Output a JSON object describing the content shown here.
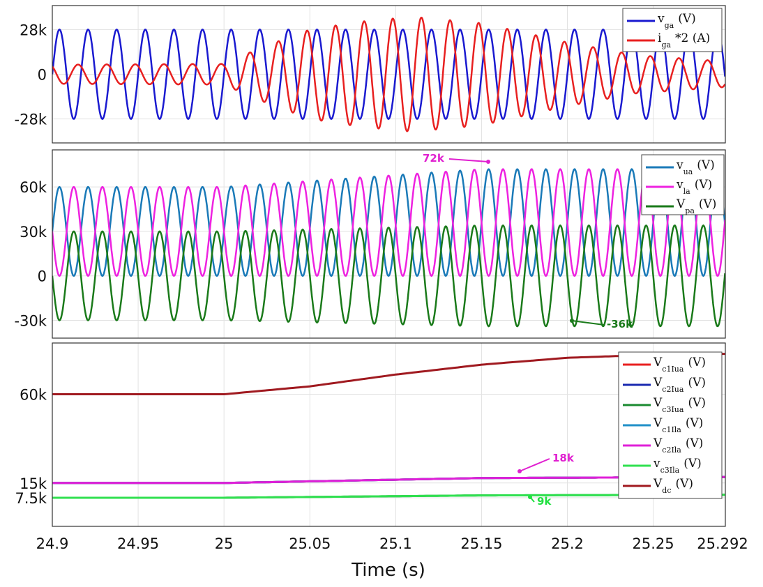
{
  "chart_data": [
    {
      "type": "line",
      "panel": "grid-voltage-current",
      "ylim": [
        -43000,
        43000
      ],
      "yticks": [
        {
          "v": 28000,
          "label": "28k"
        },
        {
          "v": 0,
          "label": "0"
        },
        {
          "v": -28000,
          "label": "-28k"
        }
      ],
      "series": [
        {
          "name": "v",
          "sub": "ga",
          "unit": "(V)",
          "color": "#1a1ad0",
          "freq": 60,
          "phase": 0,
          "offset": [
            [
              24.9,
              0
            ],
            [
              25.292,
              0
            ]
          ],
          "amp": [
            [
              24.9,
              28000
            ],
            [
              25.292,
              28000
            ]
          ]
        },
        {
          "name": "i",
          "sub": "ga",
          "unit": "*2 (A)",
          "color": "#e82020",
          "freq": 60,
          "phase": 2.2,
          "offset": [
            [
              24.9,
              0
            ],
            [
              25.292,
              0
            ]
          ],
          "amp": [
            [
              24.9,
              6000
            ],
            [
              25.0,
              6500
            ],
            [
              25.02,
              16000
            ],
            [
              25.05,
              28000
            ],
            [
              25.08,
              33000
            ],
            [
              25.11,
              36000
            ],
            [
              25.15,
              32000
            ],
            [
              25.2,
              20000
            ],
            [
              25.24,
              12000
            ],
            [
              25.292,
              8000
            ]
          ]
        }
      ]
    },
    {
      "type": "line",
      "panel": "arm-voltages",
      "ylim": [
        -42000,
        85000
      ],
      "yticks": [
        {
          "v": 60000,
          "label": "60k"
        },
        {
          "v": 30000,
          "label": "30k"
        },
        {
          "v": 0,
          "label": "0"
        },
        {
          "v": -30000,
          "label": "-30k"
        }
      ],
      "annotations": [
        {
          "text": "72k",
          "color": "#e020d0"
        },
        {
          "text": "-36k",
          "color": "#1a7a1a"
        }
      ],
      "series": [
        {
          "name": "v",
          "sub": "ua",
          "unit": "(V)",
          "color": "#1a7ab8",
          "freq": 60,
          "phase": 0,
          "offset": [
            [
              24.9,
              30000
            ],
            [
              25.0,
              30000
            ],
            [
              25.15,
              36000
            ],
            [
              25.292,
              36000
            ]
          ],
          "amp": [
            [
              24.9,
              30000
            ],
            [
              25.0,
              30000
            ],
            [
              25.15,
              36000
            ],
            [
              25.292,
              36000
            ]
          ]
        },
        {
          "name": "v",
          "sub": "la",
          "unit": "(V)",
          "color": "#ee22e0",
          "freq": 60,
          "phase": 3.14159,
          "offset": [
            [
              24.9,
              30000
            ],
            [
              25.0,
              30000
            ],
            [
              25.15,
              36000
            ],
            [
              25.292,
              36000
            ]
          ],
          "amp": [
            [
              24.9,
              30000
            ],
            [
              25.0,
              30000
            ],
            [
              25.15,
              36000
            ],
            [
              25.292,
              36000
            ]
          ]
        },
        {
          "name": "V",
          "sub": "pa",
          "unit": "(V)",
          "color": "#1a7a1a",
          "freq": 60,
          "phase": 3.14159,
          "offset": [
            [
              24.9,
              0
            ],
            [
              25.292,
              0
            ]
          ],
          "amp": [
            [
              24.9,
              30000
            ],
            [
              25.0,
              30000
            ],
            [
              25.15,
              34000
            ],
            [
              25.292,
              34000
            ]
          ]
        }
      ]
    },
    {
      "type": "line",
      "panel": "capacitor-dc-voltages",
      "ylim": [
        -7000,
        86000
      ],
      "yticks": [
        {
          "v": 60000,
          "label": "60k"
        },
        {
          "v": 15000,
          "label": "15k"
        },
        {
          "v": 7500,
          "label": "7.5k"
        }
      ],
      "annotations": [
        {
          "text": "18k",
          "color": "#e020d0"
        },
        {
          "text": "9k",
          "color": "#20e040"
        }
      ],
      "series": [
        {
          "name": "V",
          "sub": "c1Iua",
          "unit": "(V)",
          "color": "#e82020",
          "points": [
            [
              24.9,
              15000
            ],
            [
              25.0,
              15000
            ],
            [
              25.15,
              17500
            ],
            [
              25.292,
              18000
            ]
          ]
        },
        {
          "name": "V",
          "sub": "c2Iua",
          "unit": "(V)",
          "color": "#1a2ab0",
          "points": [
            [
              24.9,
              15000
            ],
            [
              25.0,
              15000
            ],
            [
              25.15,
              17500
            ],
            [
              25.292,
              18000
            ]
          ]
        },
        {
          "name": "V",
          "sub": "c3Iua",
          "unit": "(V)",
          "color": "#1a8a30",
          "points": [
            [
              24.9,
              7500
            ],
            [
              25.0,
              7500
            ],
            [
              25.15,
              8700
            ],
            [
              25.292,
              9000
            ]
          ]
        },
        {
          "name": "V",
          "sub": "c1Ila",
          "unit": "(V)",
          "color": "#2090c8",
          "points": [
            [
              24.9,
              15000
            ],
            [
              25.0,
              15000
            ],
            [
              25.15,
              17500
            ],
            [
              25.292,
              18000
            ]
          ]
        },
        {
          "name": "V",
          "sub": "c2Ila",
          "unit": "(V)",
          "color": "#e020d8",
          "points": [
            [
              24.9,
              15000
            ],
            [
              25.0,
              15000
            ],
            [
              25.15,
              17500
            ],
            [
              25.292,
              18000
            ]
          ]
        },
        {
          "name": "v",
          "sub": "c3Ila",
          "unit": "(V)",
          "color": "#30e050",
          "points": [
            [
              24.9,
              7500
            ],
            [
              25.0,
              7500
            ],
            [
              25.15,
              8700
            ],
            [
              25.292,
              9000
            ]
          ]
        },
        {
          "name": "V",
          "sub": "dc",
          "unit": "(V)",
          "color": "#a01a20",
          "points": [
            [
              24.9,
              60000
            ],
            [
              25.0,
              60000
            ],
            [
              25.05,
              64000
            ],
            [
              25.1,
              70000
            ],
            [
              25.15,
              75000
            ],
            [
              25.2,
              78500
            ],
            [
              25.25,
              80000
            ],
            [
              25.292,
              80500
            ]
          ]
        }
      ]
    }
  ],
  "xaxis": {
    "label": "Time (s)",
    "xlim": [
      24.9,
      25.292
    ],
    "ticks": [
      {
        "v": 24.9,
        "label": "24.9"
      },
      {
        "v": 24.95,
        "label": "24.95"
      },
      {
        "v": 25,
        "label": "25"
      },
      {
        "v": 25.05,
        "label": "25.05"
      },
      {
        "v": 25.1,
        "label": "25.1"
      },
      {
        "v": 25.15,
        "label": "25.15"
      },
      {
        "v": 25.2,
        "label": "25.2"
      },
      {
        "v": 25.25,
        "label": "25.25"
      },
      {
        "v": 25.292,
        "label": "25.292"
      }
    ]
  }
}
